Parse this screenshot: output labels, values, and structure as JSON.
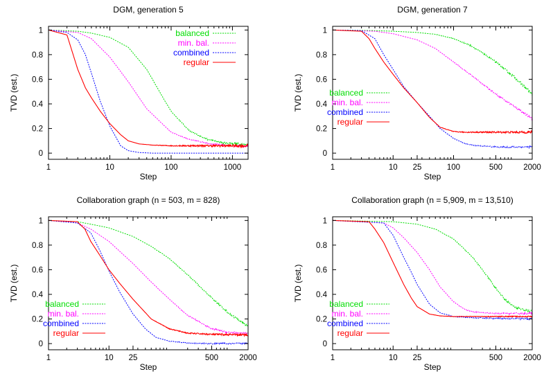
{
  "chart_data": [
    {
      "type": "line",
      "title": "DGM, generation 5",
      "xlabel": "Step",
      "ylabel": "TVD (est.)",
      "xscale": "log",
      "xlim": [
        1,
        1800
      ],
      "ylim": [
        -0.05,
        1.03
      ],
      "xticks": [
        1,
        10,
        100,
        1000
      ],
      "xtick_labels": [
        "1",
        "10",
        "100",
        "1000"
      ],
      "yticks": [
        0,
        0.2,
        0.4,
        0.6,
        0.8,
        1
      ],
      "ytick_labels": [
        "0",
        "0.2",
        "0.4",
        "0.6",
        "0.8",
        "1"
      ],
      "legend_position": "top-right",
      "series": [
        {
          "name": "balanced",
          "color": "#00dd00",
          "dash": "dotted",
          "noise": 0.01,
          "x": [
            1,
            3,
            5,
            10,
            20,
            40,
            70,
            100,
            200,
            400,
            700,
            1000,
            1800
          ],
          "y": [
            1,
            0.99,
            0.975,
            0.94,
            0.86,
            0.68,
            0.47,
            0.34,
            0.18,
            0.11,
            0.085,
            0.078,
            0.07
          ]
        },
        {
          "name": "min. bal.",
          "color": "#ff00ff",
          "dash": "dotted",
          "noise": 0.008,
          "x": [
            1,
            3,
            5,
            10,
            20,
            40,
            100,
            200,
            400,
            700,
            1000,
            1800
          ],
          "y": [
            1,
            0.98,
            0.93,
            0.78,
            0.58,
            0.36,
            0.17,
            0.11,
            0.08,
            0.065,
            0.06,
            0.055
          ]
        },
        {
          "name": "combined",
          "color": "#0000ff",
          "dash": "dotted",
          "noise": 0,
          "x": [
            1,
            2,
            3,
            4,
            5,
            7,
            10,
            15,
            20,
            30,
            50,
            100,
            1800
          ],
          "y": [
            1,
            0.98,
            0.92,
            0.8,
            0.65,
            0.42,
            0.22,
            0.06,
            0.02,
            0.005,
            0,
            0,
            0
          ]
        },
        {
          "name": "regular",
          "color": "#ff0000",
          "dash": "solid",
          "noise": 0.012,
          "x": [
            1,
            2,
            3,
            4,
            5,
            7,
            10,
            15,
            20,
            30,
            50,
            100,
            1800
          ],
          "y": [
            1,
            0.96,
            0.68,
            0.53,
            0.45,
            0.34,
            0.24,
            0.15,
            0.1,
            0.075,
            0.065,
            0.06,
            0.06
          ]
        }
      ]
    },
    {
      "type": "line",
      "title": "DGM, generation 7",
      "xlabel": "Step",
      "ylabel": "TVD (est.)",
      "xscale": "log",
      "xlim": [
        1,
        2000
      ],
      "ylim": [
        -0.05,
        1.03
      ],
      "xticks": [
        1,
        10,
        25,
        100,
        500,
        2000
      ],
      "xtick_labels": [
        "1",
        "10",
        "25",
        "100",
        "500",
        "2000"
      ],
      "yticks": [
        0,
        0.2,
        0.4,
        0.6,
        0.8,
        1
      ],
      "ytick_labels": [
        "0",
        "0.2",
        "0.4",
        "0.6",
        "0.8",
        "1"
      ],
      "legend_position": "center-left",
      "series": [
        {
          "name": "balanced",
          "color": "#00dd00",
          "dash": "dotted",
          "noise": 0.012,
          "x": [
            1,
            5,
            10,
            25,
            50,
            100,
            200,
            500,
            1000,
            2000
          ],
          "y": [
            1,
            0.995,
            0.99,
            0.98,
            0.965,
            0.93,
            0.87,
            0.74,
            0.62,
            0.48
          ]
        },
        {
          "name": "min. bal.",
          "color": "#ff00ff",
          "dash": "dotted",
          "noise": 0.01,
          "x": [
            1,
            5,
            10,
            25,
            50,
            100,
            200,
            500,
            1000,
            2000
          ],
          "y": [
            1,
            0.99,
            0.97,
            0.92,
            0.85,
            0.74,
            0.63,
            0.48,
            0.38,
            0.28
          ]
        },
        {
          "name": "combined",
          "color": "#0000ff",
          "dash": "dotted",
          "noise": 0.008,
          "x": [
            1,
            3,
            5,
            7,
            10,
            15,
            25,
            40,
            60,
            100,
            150,
            200,
            500,
            2000
          ],
          "y": [
            1,
            0.995,
            0.93,
            0.8,
            0.68,
            0.54,
            0.41,
            0.3,
            0.2,
            0.12,
            0.08,
            0.065,
            0.05,
            0.05
          ]
        },
        {
          "name": "regular",
          "color": "#ff0000",
          "dash": "solid",
          "noise": 0.01,
          "x": [
            1,
            3,
            4,
            5,
            7,
            10,
            15,
            25,
            40,
            60,
            100,
            150,
            2000
          ],
          "y": [
            1,
            0.99,
            0.93,
            0.85,
            0.74,
            0.64,
            0.53,
            0.41,
            0.29,
            0.21,
            0.175,
            0.17,
            0.17
          ]
        }
      ]
    },
    {
      "type": "line",
      "title": "Collaboration graph (n = 503, m = 828)",
      "xlabel": "Step",
      "ylabel": "TVD (est.)",
      "xscale": "log",
      "xlim": [
        1,
        2000
      ],
      "ylim": [
        -0.05,
        1.03
      ],
      "xticks": [
        1,
        10,
        25,
        500,
        2000
      ],
      "xtick_labels": [
        "1",
        "10",
        "25",
        "500",
        "2000"
      ],
      "yticks": [
        0,
        0.2,
        0.4,
        0.6,
        0.8,
        1
      ],
      "ytick_labels": [
        "0",
        "0.2",
        "0.4",
        "0.6",
        "0.8",
        "1"
      ],
      "legend_position": "bottom-left",
      "series": [
        {
          "name": "balanced",
          "color": "#00dd00",
          "dash": "dotted",
          "noise": 0.01,
          "x": [
            1,
            3,
            5,
            10,
            25,
            50,
            100,
            200,
            500,
            1000,
            2000
          ],
          "y": [
            1,
            0.99,
            0.97,
            0.94,
            0.87,
            0.79,
            0.69,
            0.56,
            0.37,
            0.24,
            0.14
          ]
        },
        {
          "name": "min. bal.",
          "color": "#ff00ff",
          "dash": "dotted",
          "noise": 0.01,
          "x": [
            1,
            3,
            5,
            10,
            25,
            50,
            100,
            200,
            500,
            1000,
            2000
          ],
          "y": [
            1,
            0.98,
            0.93,
            0.83,
            0.65,
            0.5,
            0.36,
            0.23,
            0.12,
            0.09,
            0.08
          ]
        },
        {
          "name": "combined",
          "color": "#0000ff",
          "dash": "dotted",
          "noise": 0.007,
          "x": [
            1,
            3,
            5,
            7,
            10,
            15,
            25,
            40,
            60,
            100,
            200,
            500,
            2000
          ],
          "y": [
            1,
            0.98,
            0.9,
            0.76,
            0.59,
            0.42,
            0.24,
            0.12,
            0.05,
            0.02,
            0.005,
            0,
            0
          ]
        },
        {
          "name": "regular",
          "color": "#ff0000",
          "dash": "solid",
          "noise": 0.01,
          "x": [
            1,
            3,
            4,
            5,
            7,
            10,
            15,
            25,
            50,
            100,
            200,
            500,
            2000
          ],
          "y": [
            1,
            0.99,
            0.93,
            0.83,
            0.72,
            0.6,
            0.49,
            0.36,
            0.2,
            0.12,
            0.085,
            0.075,
            0.07
          ]
        }
      ]
    },
    {
      "type": "line",
      "title": "Collaboration graph (n = 5,909, m = 13,510)",
      "xlabel": "Step",
      "ylabel": "TVD (est.)",
      "xscale": "log",
      "xlim": [
        1,
        2000
      ],
      "ylim": [
        -0.05,
        1.03
      ],
      "xticks": [
        1,
        10,
        25,
        500,
        2000
      ],
      "xtick_labels": [
        "1",
        "10",
        "25",
        "500",
        "2000"
      ],
      "yticks": [
        0,
        0.2,
        0.4,
        0.6,
        0.8,
        1
      ],
      "ytick_labels": [
        "0",
        "0.2",
        "0.4",
        "0.6",
        "0.8",
        "1"
      ],
      "legend_position": "bottom-left",
      "series": [
        {
          "name": "balanced",
          "color": "#00dd00",
          "dash": "dotted",
          "noise": 0.01,
          "x": [
            1,
            10,
            25,
            50,
            100,
            200,
            300,
            500,
            700,
            1000,
            1500,
            2000
          ],
          "y": [
            1,
            0.99,
            0.97,
            0.93,
            0.85,
            0.71,
            0.6,
            0.45,
            0.36,
            0.3,
            0.27,
            0.26
          ]
        },
        {
          "name": "min. bal.",
          "color": "#ff00ff",
          "dash": "dotted",
          "noise": 0.008,
          "x": [
            1,
            7,
            10,
            15,
            25,
            40,
            60,
            100,
            150,
            200,
            300,
            500,
            2000
          ],
          "y": [
            1,
            0.98,
            0.94,
            0.86,
            0.74,
            0.6,
            0.46,
            0.34,
            0.28,
            0.26,
            0.25,
            0.245,
            0.245
          ]
        },
        {
          "name": "combined",
          "color": "#0000ff",
          "dash": "dotted",
          "noise": 0.008,
          "x": [
            1,
            7,
            10,
            15,
            20,
            25,
            40,
            60,
            100,
            200,
            500,
            2000
          ],
          "y": [
            1,
            0.98,
            0.88,
            0.7,
            0.58,
            0.48,
            0.32,
            0.25,
            0.22,
            0.21,
            0.205,
            0.2
          ]
        },
        {
          "name": "regular",
          "color": "#ff0000",
          "dash": "solid",
          "noise": 0.005,
          "x": [
            1,
            4,
            5,
            7,
            10,
            15,
            20,
            25,
            40,
            60,
            100,
            2000
          ],
          "y": [
            1,
            0.99,
            0.93,
            0.82,
            0.66,
            0.48,
            0.37,
            0.3,
            0.24,
            0.225,
            0.22,
            0.22
          ]
        }
      ]
    }
  ]
}
